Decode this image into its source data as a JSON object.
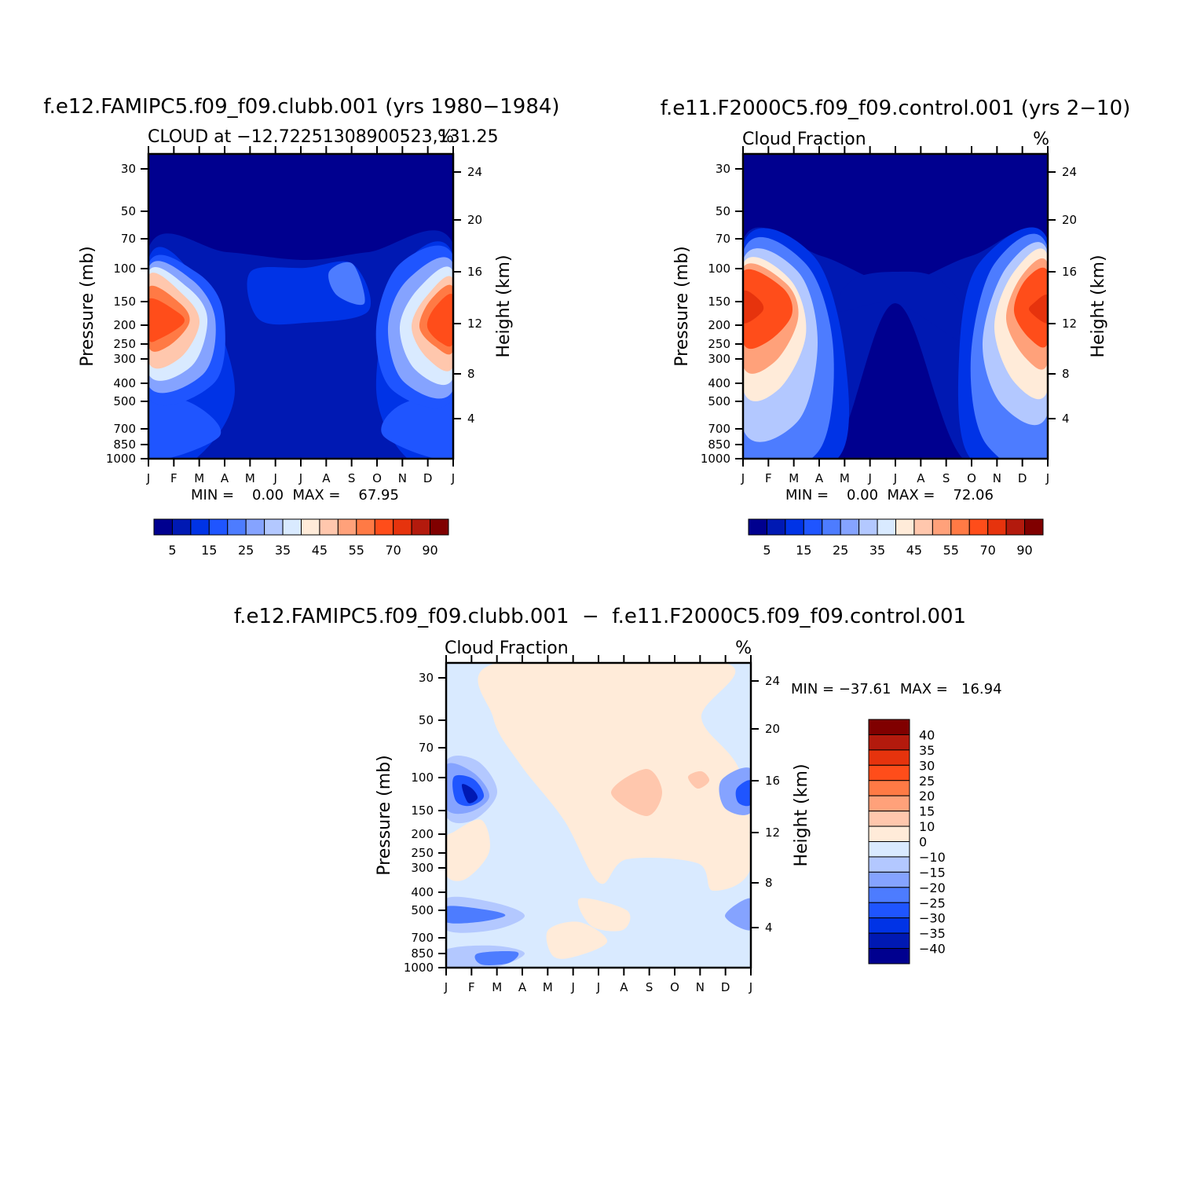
{
  "colors": {
    "abs_levels": [
      "#00008f",
      "#0019b3",
      "#0033e6",
      "#1f55ff",
      "#4d7cff",
      "#85a3ff",
      "#b3c8ff",
      "#d9eaff",
      "#ffebd9",
      "#ffc7ad",
      "#ffa17a",
      "#ff7a45",
      "#ff4d1a",
      "#e6330d",
      "#b31a0d",
      "#800000"
    ],
    "diff_levels": [
      "#00008f",
      "#0019b3",
      "#0033e6",
      "#1f55ff",
      "#4d7cff",
      "#85a3ff",
      "#b3c8ff",
      "#d9eaff",
      "#ffebd9",
      "#ffc7ad",
      "#ffa17a",
      "#ff7a45",
      "#ff4d1a",
      "#e6330d",
      "#b31a0d",
      "#800000"
    ]
  },
  "chart_data": [
    {
      "type": "heatmap",
      "title": "f.e12.FAMIPC5.f09_f09.clubb.001 (yrs 1980−1984)",
      "subtitle_left": "CLOUD at −12.72251308900523,131.25",
      "subtitle_right": "%",
      "xlabel": "",
      "ylabel": "Pressure (mb)",
      "ylabel_right": "Height (km)",
      "x_ticks": [
        "J",
        "F",
        "M",
        "A",
        "M",
        "J",
        "J",
        "A",
        "S",
        "O",
        "N",
        "D",
        "J"
      ],
      "y_ticks": [
        30,
        50,
        70,
        100,
        150,
        200,
        250,
        300,
        400,
        500,
        700,
        850,
        1000
      ],
      "y_ticks_right": [
        24,
        20,
        16,
        12,
        8,
        4
      ],
      "ylim": [
        1000,
        24
      ],
      "min_max_text": "MIN =    0.00  MAX =    67.95",
      "min": 0.0,
      "max": 67.95,
      "colorbar_labels": [
        "5",
        "15",
        "25",
        "35",
        "45",
        "55",
        "70",
        "90"
      ],
      "description": "Month-pressure contour: high cloud fraction peak (~60-68%) near 150-250 mb in Dec-Feb, minimum in mid-year below 200 mb"
    },
    {
      "type": "heatmap",
      "title": "f.e11.F2000C5.f09_f09.control.001 (yrs 2−10)",
      "subtitle_left": "Cloud Fraction",
      "subtitle_right": "%",
      "xlabel": "",
      "ylabel": "Pressure (mb)",
      "ylabel_right": "Height (km)",
      "x_ticks": [
        "J",
        "F",
        "M",
        "A",
        "M",
        "J",
        "J",
        "A",
        "S",
        "O",
        "N",
        "D",
        "J"
      ],
      "y_ticks": [
        30,
        50,
        70,
        100,
        150,
        200,
        250,
        300,
        400,
        500,
        700,
        850,
        1000
      ],
      "y_ticks_right": [
        24,
        20,
        16,
        12,
        8,
        4
      ],
      "ylim": [
        1000,
        24
      ],
      "min_max_text": "MIN =    0.00  MAX =    72.06",
      "min": 0.0,
      "max": 72.06,
      "colorbar_labels": [
        "5",
        "15",
        "25",
        "35",
        "45",
        "55",
        "70",
        "90"
      ]
    },
    {
      "type": "heatmap",
      "title": "f.e12.FAMIPC5.f09_f09.clubb.001  −  f.e11.F2000C5.f09_f09.control.001",
      "subtitle_left": "Cloud Fraction",
      "subtitle_right": "%",
      "xlabel": "",
      "ylabel": "Pressure (mb)",
      "ylabel_right": "Height (km)",
      "x_ticks": [
        "J",
        "F",
        "M",
        "A",
        "M",
        "J",
        "J",
        "A",
        "S",
        "O",
        "N",
        "D",
        "J"
      ],
      "y_ticks": [
        30,
        50,
        70,
        100,
        150,
        200,
        250,
        300,
        400,
        500,
        700,
        850,
        1000
      ],
      "y_ticks_right": [
        24,
        20,
        16,
        12,
        8,
        4
      ],
      "ylim": [
        1000,
        24
      ],
      "min_max_text": "MIN = −37.61  MAX =   16.94",
      "min": -37.61,
      "max": 16.94,
      "colorbar_labels": [
        "40",
        "35",
        "30",
        "25",
        "20",
        "15",
        "10",
        "0",
        "−10",
        "−15",
        "−20",
        "−25",
        "−30",
        "−35",
        "−40"
      ]
    }
  ]
}
